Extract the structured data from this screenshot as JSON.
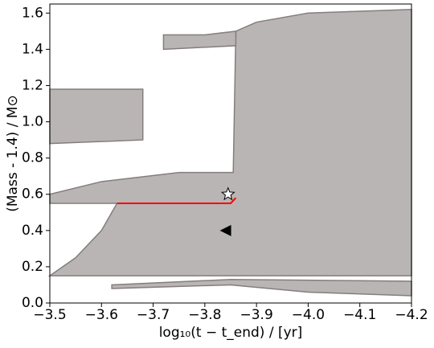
{
  "chart_data": {
    "type": "kippenhahn",
    "xlabel": "log₁₀(t − t_end) / [yr]",
    "ylabel": "(Mass - 1.4) / M⊙",
    "xlim": [
      -3.5,
      -4.2
    ],
    "ylim": [
      0,
      1.65
    ],
    "xticks": [
      {
        "value": -3.5,
        "label": "−3.5"
      },
      {
        "value": -3.6,
        "label": "−3.6"
      },
      {
        "value": -3.7,
        "label": "−3.7"
      },
      {
        "value": -3.8,
        "label": "−3.8"
      },
      {
        "value": -3.9,
        "label": "−3.9"
      },
      {
        "value": -4.0,
        "label": "−4.0"
      },
      {
        "value": -4.1,
        "label": "−4.1"
      },
      {
        "value": -4.2,
        "label": "−4.2"
      }
    ],
    "yticks": [
      {
        "value": 0,
        "label": "0.0"
      },
      0.2,
      0.4,
      0.6,
      0.8,
      {
        "value": 1,
        "label": "1.0"
      },
      1.2,
      1.4,
      1.6
    ],
    "region_color": "#bab5b5",
    "region_edge": "#857d7d",
    "regions": [
      {
        "x": [
          -3.5,
          -4.2,
          -4.2,
          -4.0,
          -3.9,
          -3.86,
          -3.855,
          -3.75,
          -3.6,
          -3.5,
          -3.5,
          -3.63,
          -3.6,
          -3.55
        ],
        "y": [
          0.15,
          0.15,
          1.62,
          1.6,
          1.55,
          1.5,
          0.72,
          0.72,
          0.67,
          0.6,
          0.55,
          0.55,
          0.4,
          0.25
        ]
      },
      {
        "x": [
          -3.5,
          -3.68,
          -3.68,
          -3.5
        ],
        "y": [
          0.88,
          0.9,
          1.18,
          1.18
        ]
      },
      {
        "x": [
          -3.72,
          -3.86,
          -3.86,
          -3.8,
          -3.72
        ],
        "y": [
          1.4,
          1.42,
          1.5,
          1.48,
          1.48
        ]
      },
      {
        "x": [
          -3.62,
          -3.85,
          -4.0,
          -4.2,
          -4.2,
          -3.85,
          -3.62
        ],
        "y": [
          0.08,
          0.1,
          0.06,
          0.04,
          0.12,
          0.13,
          0.1
        ]
      }
    ],
    "series": [
      {
        "color": "#ff0000",
        "x": [
          -3.63,
          -3.85,
          -3.86
        ],
        "y": [
          0.55,
          0.55,
          0.58
        ]
      }
    ],
    "markers": [
      {
        "shape": "star",
        "x": -3.845,
        "y": 0.6
      },
      {
        "shape": "triangle-left",
        "x": -3.84,
        "y": 0.4
      }
    ]
  }
}
